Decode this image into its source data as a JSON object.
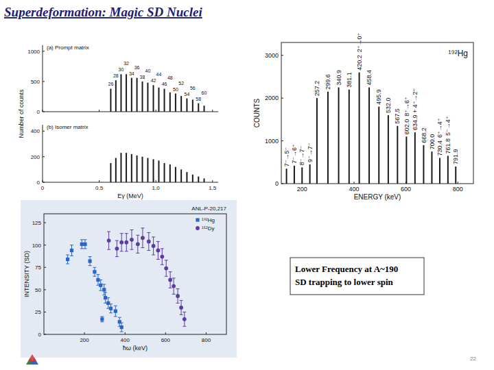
{
  "title": "Superdeformation: Magic SD Nuclei",
  "chart_data": [
    {
      "type": "bar",
      "title": "(a) Prompt matrix",
      "ylabel": "Number of counts",
      "color": "#1a1a1a",
      "tick_labels": "y",
      "x": [
        0.602,
        0.647,
        0.693,
        0.739,
        0.786,
        0.833,
        0.881,
        0.929,
        0.978,
        1.026,
        1.075,
        1.125,
        1.174,
        1.224,
        1.274,
        1.325,
        1.376,
        1.426
      ],
      "values": [
        380,
        520,
        620,
        620,
        560,
        560,
        500,
        480,
        440,
        400,
        380,
        320,
        300,
        260,
        220,
        200,
        140,
        100
      ],
      "peak_labels": [
        "26",
        "28",
        "30",
        "32",
        "34",
        "36",
        "38",
        "40",
        "42",
        "44",
        "46",
        "48",
        "50",
        "52",
        "54",
        "56",
        "58",
        "60"
      ],
      "xlim": [
        0,
        1.55
      ],
      "xticks": [
        0,
        0.5,
        {
          "value": 1,
          "label": "1.0"
        },
        1.5
      ],
      "ylim": [
        0,
        1100
      ],
      "yticks": [
        0,
        500,
        1000
      ]
    },
    {
      "type": "bar",
      "title": "(b) Isomer matrix",
      "xlabel": "Eγ (MeV)",
      "color": "#1a1a1a",
      "x": [
        0.602,
        0.647,
        0.693,
        0.739,
        0.786,
        0.833,
        0.881,
        0.929,
        0.978,
        1.026,
        1.075,
        1.125,
        1.174,
        1.224,
        1.274,
        1.325,
        1.376,
        1.426
      ],
      "values": [
        150,
        190,
        230,
        230,
        220,
        210,
        200,
        190,
        180,
        170,
        150,
        140,
        120,
        100,
        80,
        60,
        45,
        30
      ],
      "xlim": [
        0,
        1.55
      ],
      "xticks": [
        0,
        0.5,
        {
          "value": 1,
          "label": "1.0"
        },
        1.5
      ],
      "ylim": [
        0,
        450
      ],
      "yticks": [
        0,
        200,
        400
      ]
    },
    {
      "type": "bar",
      "title": "¹⁹²Hg",
      "xlabel": "ENERGY (keV)",
      "ylabel": "COUNTS",
      "color": "#1a1a1a",
      "x": [
        140,
        170,
        200,
        230,
        257.2,
        299.6,
        340.9,
        381.1,
        420.2,
        458.4,
        495.9,
        532.0,
        567.5,
        602.0,
        634.9,
        668.2,
        700.0,
        730.4,
        761.8,
        791.9
      ],
      "values": [
        350,
        420,
        380,
        450,
        2000,
        2150,
        2250,
        2200,
        2600,
        2250,
        1800,
        1600,
        1350,
        1100,
        1200,
        900,
        750,
        600,
        650,
        400
      ],
      "peak_labels": [
        null,
        null,
        null,
        null,
        "257.2",
        "299.6",
        "340.9",
        "381.1",
        "420.2",
        "458.4",
        "495.9",
        "532.0",
        "567.5",
        "602.0",
        "634.9 + 4⁺→2⁺",
        "668.2",
        "700.0",
        "730.4",
        "761.8",
        "791.9"
      ],
      "annotations": [
        {
          "x": 140,
          "text": "7⁻→5⁻"
        },
        {
          "x": 170,
          "text": "7⁻→6⁺"
        },
        {
          "x": 200,
          "text": "8⁻→7⁻"
        },
        {
          "x": 230,
          "text": "9⁻→7⁻"
        },
        {
          "x": 420.2,
          "text": "2⁺→0⁺"
        },
        {
          "x": 602.0,
          "text": "8⁺→6⁺"
        },
        {
          "x": 730.4,
          "text": "6⁺→4⁺"
        },
        {
          "x": 761.8,
          "text": "5⁻→4⁺"
        }
      ],
      "xlim": [
        120,
        860
      ],
      "xticks": [
        200,
        400,
        600,
        800
      ],
      "ylim": [
        0,
        3300
      ],
      "yticks": [
        0,
        1000,
        2000,
        3000
      ]
    },
    {
      "type": "scatter",
      "title": "ANL-P-20,217",
      "xlabel": "ħω (keV)",
      "ylabel": "INTENSITY (SD)",
      "legend": "upper right",
      "series": [
        {
          "name": "¹⁹²Hg",
          "color": "#2a64c8",
          "marker": "square",
          "x": [
            117,
            137,
            187,
            203,
            227,
            250,
            267,
            280,
            287,
            297,
            303,
            317,
            330,
            353,
            373,
            383
          ],
          "values": [
            84,
            94,
            101,
            101,
            82,
            70,
            61,
            55,
            17,
            50,
            41,
            35,
            29,
            26,
            14,
            8
          ],
          "errors": [
            5,
            6,
            5,
            5,
            5,
            5,
            6,
            6,
            3,
            6,
            6,
            6,
            5,
            6,
            5,
            5
          ]
        },
        {
          "name": "¹⁵²Dy",
          "color": "#5a3d9c",
          "marker": "circle",
          "x": [
            320,
            360,
            383,
            407,
            433,
            463,
            487,
            517,
            540,
            563,
            583,
            603,
            623,
            640,
            660,
            677,
            693
          ],
          "values": [
            105,
            96,
            103,
            103,
            106,
            101,
            108,
            104,
            99,
            94,
            87,
            74,
            61,
            54,
            43,
            30,
            17
          ],
          "errors": [
            10,
            9,
            10,
            10,
            11,
            10,
            11,
            10,
            10,
            10,
            9,
            9,
            9,
            9,
            8,
            8,
            8
          ]
        }
      ],
      "xlim": [
        0,
        900
      ],
      "xticks": [
        200,
        400,
        600,
        800
      ],
      "ylim": [
        0,
        135
      ],
      "yticks": [
        0,
        25,
        50,
        75,
        100,
        125
      ]
    }
  ],
  "textbox": {
    "lines": [
      "Lower Frequency at A~190",
      "SD trapping to lower spin"
    ]
  },
  "page_number": "22"
}
